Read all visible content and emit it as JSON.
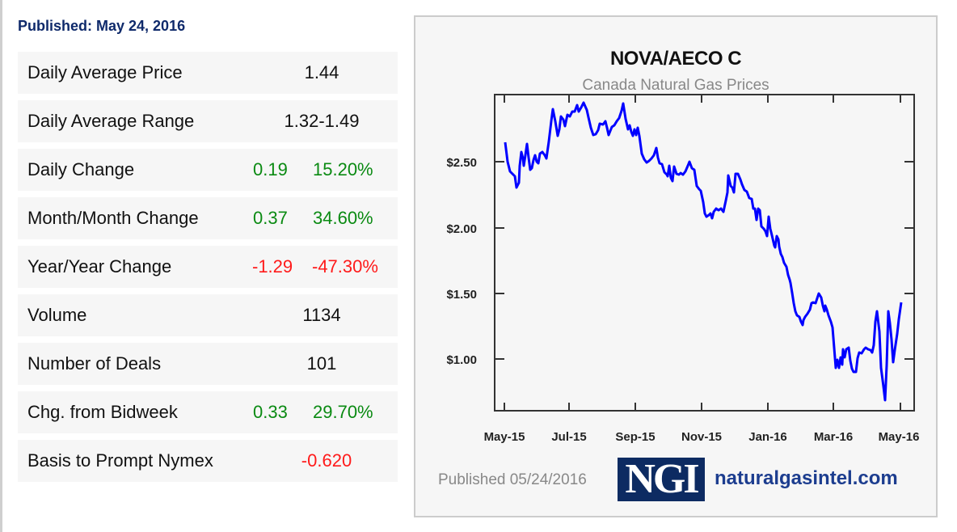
{
  "published_header": "Published: May 24, 2016",
  "stats": [
    {
      "label": "Daily Average Price",
      "value": "1.44",
      "change": null,
      "tone": "neutral"
    },
    {
      "label": "Daily Average Range",
      "value": "1.32-1.49",
      "change": null,
      "tone": "neutral"
    },
    {
      "label": "Daily Change",
      "value": "0.19",
      "change": "15.20%",
      "tone": "pos"
    },
    {
      "label": "Month/Month Change",
      "value": "0.37",
      "change": "34.60%",
      "tone": "pos"
    },
    {
      "label": "Year/Year Change",
      "value": "-1.29",
      "change": "-47.30%",
      "tone": "neg"
    },
    {
      "label": "Volume",
      "value": "1134",
      "change": null,
      "tone": "neutral"
    },
    {
      "label": "Number of Deals",
      "value": "101",
      "change": null,
      "tone": "neutral"
    },
    {
      "label": "Chg. from Bidweek",
      "value": "0.33",
      "change": "29.70%",
      "tone": "pos"
    },
    {
      "label": "Basis to Prompt Nymex",
      "value": "-0.620",
      "change": null,
      "tone": "neg"
    }
  ],
  "colors": {
    "positive": "#0a8a12",
    "negative": "#ff1a1a",
    "header": "#0f2a6b",
    "line": "#0000ff",
    "logo_bg": "#0d2b62",
    "url": "#1c3d8f"
  },
  "chart": {
    "title": "NOVA/AECO C",
    "subtitle": "Canada Natural Gas Prices",
    "footer_published": "Published 05/24/2016",
    "logo_text": "NGI",
    "url_text": "naturalgasintel.com"
  },
  "chart_data": {
    "type": "line",
    "title": "NOVA/AECO C",
    "subtitle": "Canada Natural Gas Prices",
    "xlabel": "",
    "ylabel": "",
    "x_tick_labels": [
      "May-15",
      "Jul-15",
      "Sep-15",
      "Nov-15",
      "Jan-16",
      "Mar-16",
      "May-16"
    ],
    "y_tick_labels": [
      "$2.50",
      "$2.00",
      "$1.50",
      "$1.00"
    ],
    "y_ticks": [
      2.5,
      2.0,
      1.5,
      1.0
    ],
    "ylim": [
      0.6,
      3.0
    ],
    "grid": false,
    "legend": null,
    "series": [
      {
        "name": "NOVA/AECO C",
        "x": [
          "May-15",
          "May-15",
          "Jun-15",
          "Jun-15",
          "Jun-15",
          "Jun-15",
          "Jul-15",
          "Jul-15",
          "Jul-15",
          "Aug-15",
          "Aug-15",
          "Aug-15",
          "Sep-15",
          "Sep-15",
          "Sep-15",
          "Oct-15",
          "Oct-15",
          "Oct-15",
          "Nov-15",
          "Nov-15",
          "Nov-15",
          "Dec-15",
          "Dec-15",
          "Dec-15",
          "Jan-16",
          "Jan-16",
          "Jan-16",
          "Feb-16",
          "Feb-16",
          "Feb-16",
          "Mar-16",
          "Mar-16",
          "Mar-16",
          "Apr-16",
          "Apr-16",
          "Apr-16",
          "May-16",
          "May-16"
        ],
        "values": [
          2.65,
          2.32,
          2.45,
          2.28,
          2.63,
          2.55,
          2.88,
          2.85,
          2.93,
          2.72,
          2.8,
          2.96,
          2.72,
          2.5,
          2.57,
          2.36,
          2.48,
          2.3,
          2.1,
          2.12,
          2.18,
          2.46,
          2.35,
          2.44,
          2.16,
          1.95,
          1.82,
          1.57,
          1.3,
          1.14,
          1.25,
          1.43,
          1.26,
          0.92,
          1.05,
          0.9,
          1.36,
          1.44
        ]
      }
    ]
  }
}
